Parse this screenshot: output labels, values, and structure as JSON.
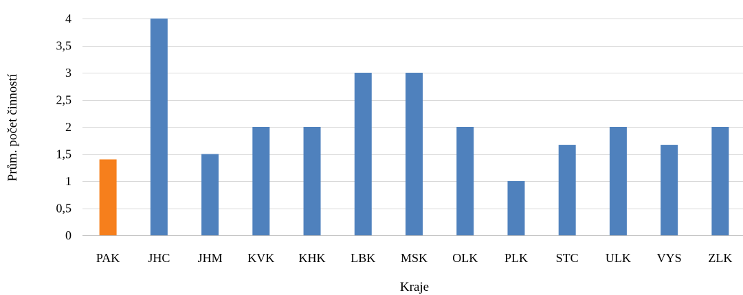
{
  "chart_data": {
    "type": "bar",
    "categories": [
      "PAK",
      "JHC",
      "JHM",
      "KVK",
      "KHK",
      "LBK",
      "MSK",
      "OLK",
      "PLK",
      "STC",
      "ULK",
      "VYS",
      "ZLK"
    ],
    "values": [
      1.4,
      4,
      1.5,
      2,
      2,
      3,
      3,
      2,
      1,
      1.67,
      2,
      1.67,
      2
    ],
    "highlight_index": 0,
    "colors": {
      "bar": "#4F81BD",
      "highlight": "#F67F1C",
      "grid": "#D9D9D9"
    },
    "xlabel": "Kraje",
    "ylabel": "Prům. počet činností",
    "ylim": [
      0,
      4
    ],
    "yticks": [
      0,
      0.5,
      1,
      1.5,
      2,
      2.5,
      3,
      3.5,
      4
    ],
    "ytick_labels": [
      "0",
      "0,5",
      "1",
      "1,5",
      "2",
      "2,5",
      "3",
      "3,5",
      "4"
    ],
    "grid": true,
    "legend": "none"
  }
}
